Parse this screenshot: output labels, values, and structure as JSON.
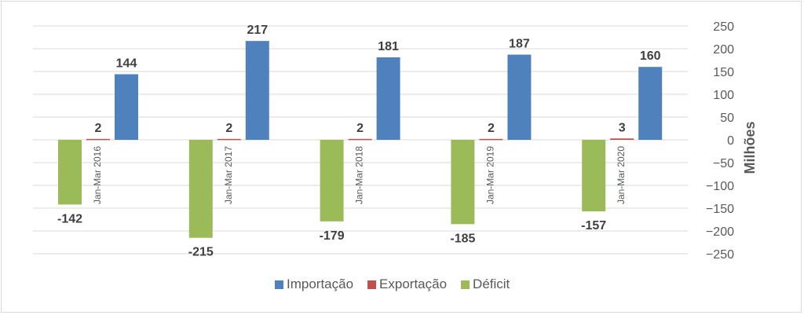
{
  "chart_data": {
    "type": "bar",
    "categories": [
      "Jan-Mar 2016",
      "Jan-Mar 2017",
      "Jan-Mar 2018",
      "Jan-Mar 2019",
      "Jan-Mar 2020"
    ],
    "series": [
      {
        "name": "Importação",
        "values": [
          144,
          217,
          181,
          187,
          160
        ],
        "color": "#4f81bd"
      },
      {
        "name": "Exportação",
        "values": [
          2,
          2,
          2,
          2,
          3
        ],
        "color": "#c0504d"
      },
      {
        "name": "Déficit",
        "values": [
          -142,
          -215,
          -179,
          -185,
          -157
        ],
        "color": "#9bbb59"
      }
    ],
    "title": "",
    "ylabel": "Milhões",
    "ylim": [
      -250,
      250
    ],
    "yticks": [
      250,
      200,
      150,
      100,
      50,
      0,
      -50,
      -100,
      -150,
      -200,
      -250
    ],
    "grid": true,
    "legend_position": "bottom",
    "y_axis_side": "right"
  }
}
